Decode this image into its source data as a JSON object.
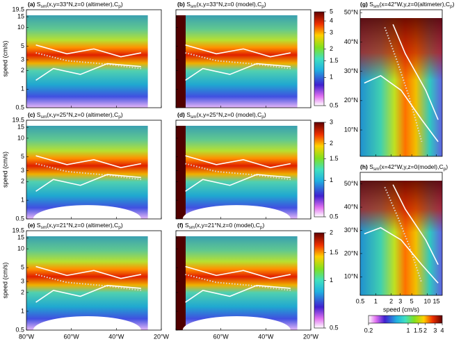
{
  "panels": [
    {
      "title": {
        "label": "(a)",
        "s": "S",
        "sub": "sm",
        "args": "(x,y=33°N,z=0 (altimeter),C",
        "sub2": "p",
        "close": ")"
      }
    },
    {
      "title": {
        "label": "(b)",
        "s": "S",
        "sub": "sm",
        "args": "(x,y=33°N,z=0 (model),C",
        "sub2": "p",
        "close": ")"
      }
    },
    {
      "title": {
        "label": "(c)",
        "s": "S",
        "sub": "sm",
        "args": "(x,y=25°N,z=0 (altimeter),C",
        "sub2": "p",
        "close": ")"
      }
    },
    {
      "title": {
        "label": "(d)",
        "s": "S",
        "sub": "sm",
        "args": "(x,y=25°N,z=0 (model),C",
        "sub2": "p",
        "close": ")"
      }
    },
    {
      "title": {
        "label": "(e)",
        "s": "S",
        "sub": "sm",
        "args": "(x,y=21°N,z=0 (altimeter),C",
        "sub2": "p",
        "close": ")"
      }
    },
    {
      "title": {
        "label": "(f)",
        "s": "S",
        "sub": "sm",
        "args": "(x,y=21°N,z=0 (model),C",
        "sub2": "p",
        "close": ")"
      }
    }
  ],
  "y_axis": {
    "label": "speed (cm/s)",
    "lim": [
      0.5,
      19.5
    ],
    "ticks": [
      19.5,
      15,
      10,
      5,
      3,
      2,
      1,
      0.5
    ]
  },
  "x_axis": {
    "lim": [
      -80,
      -20
    ],
    "ticks": [
      {
        "value": -80,
        "label": "80°W"
      },
      {
        "value": -60,
        "label": "60°W"
      },
      {
        "value": -40,
        "label": "40°W"
      },
      {
        "value": -20,
        "label": "20°W"
      }
    ]
  },
  "colorbars": [
    {
      "lim": [
        0.5,
        5
      ],
      "ticks": [
        5,
        4,
        3,
        2,
        1.5,
        1,
        0.5
      ]
    },
    {
      "lim": [
        0.5,
        3
      ],
      "ticks": [
        3,
        2,
        1.5,
        1,
        0.5
      ]
    },
    {
      "lim": [
        0.5,
        2
      ],
      "ticks": [
        2,
        1.5,
        1,
        0.5
      ]
    }
  ],
  "right_panels": [
    {
      "title": {
        "label": "(g)",
        "s": "S",
        "sub": "sm",
        "args": "(x=42°W,y,z=0(altimeter),C",
        "sub2": "p",
        "close": ")"
      },
      "lat_lim": [
        1,
        51
      ]
    },
    {
      "title": {
        "label": "(h)",
        "s": "S",
        "sub": "sm",
        "args": "(x=42°W,y,z=0(model),C",
        "sub2": "p",
        "close": ")"
      },
      "lat_lim": [
        2,
        55
      ]
    }
  ],
  "lat_axis": {
    "ticks": [
      {
        "value": 10,
        "label": "10°N"
      },
      {
        "value": 20,
        "label": "20°N"
      },
      {
        "value": 30,
        "label": "30°N"
      },
      {
        "value": 40,
        "label": "40°N"
      },
      {
        "value": 50,
        "label": "50°N"
      }
    ]
  },
  "speed_axis": {
    "label": "speed (cm/s)",
    "lim": [
      0.5,
      19.5
    ],
    "ticks": [
      0.5,
      1,
      2,
      3,
      5,
      10,
      15
    ]
  },
  "hcolorbar": {
    "lim": [
      0.2,
      4
    ],
    "ticks": [
      0.2,
      1,
      1.5,
      2,
      3,
      4
    ]
  }
}
